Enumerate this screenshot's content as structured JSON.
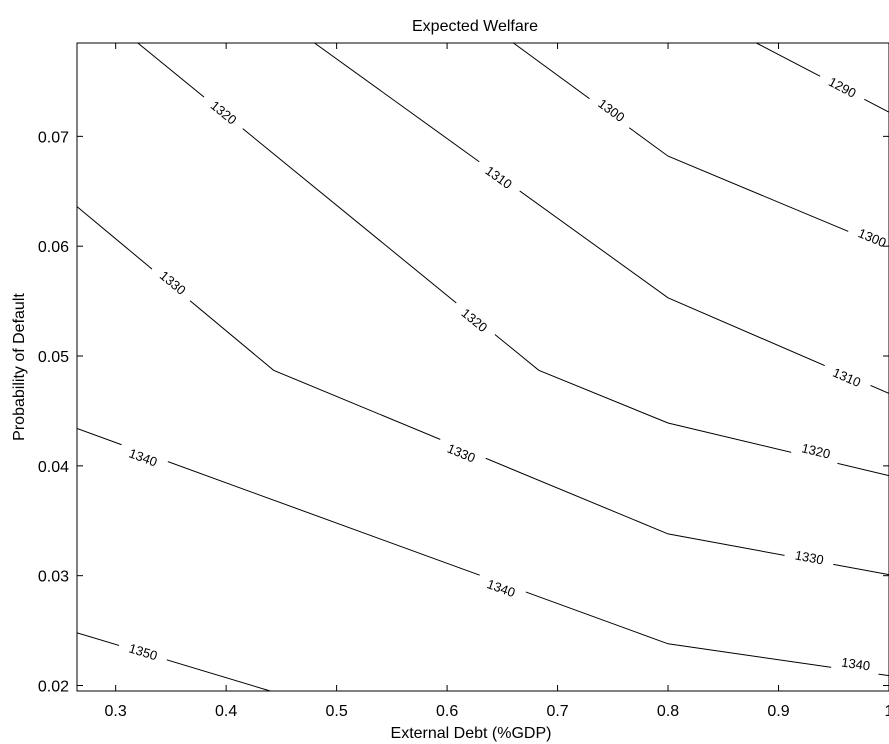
{
  "chart_data": {
    "type": "contour",
    "title": "Expected Welfare",
    "xlabel": "External Debt (%GDP)",
    "ylabel": "Probability of Default",
    "xlim": [
      0.265,
      1.0
    ],
    "ylim": [
      0.0195,
      0.0785
    ],
    "xticks": [
      0.3,
      0.4,
      0.5,
      0.6,
      0.7,
      0.8,
      0.9,
      1.0
    ],
    "xtick_labels": [
      "0.3",
      "0.4",
      "0.5",
      "0.6",
      "0.7",
      "0.8",
      "0.9",
      "1"
    ],
    "yticks": [
      0.02,
      0.03,
      0.04,
      0.05,
      0.06,
      0.07
    ],
    "ytick_labels": [
      "0.02",
      "0.03",
      "0.04",
      "0.05",
      "0.06",
      "0.07"
    ],
    "grid": false,
    "contours": [
      {
        "level": "1290",
        "points": [
          [
            0.88,
            0.0785
          ],
          [
            1.0,
            0.0722
          ]
        ],
        "labels": [
          {
            "text": "1290",
            "x": 0.958,
            "y": 0.0745
          }
        ]
      },
      {
        "level": "1300",
        "points": [
          [
            0.66,
            0.0785
          ],
          [
            0.8,
            0.0682
          ],
          [
            1.0,
            0.0598
          ]
        ],
        "labels": [
          {
            "text": "1300",
            "x": 0.749,
            "y": 0.0724
          },
          {
            "text": "1300",
            "x": 0.985,
            "y": 0.0608
          }
        ]
      },
      {
        "level": "1310",
        "points": [
          [
            0.48,
            0.0785
          ],
          [
            0.8,
            0.0553
          ],
          [
            1.0,
            0.0466
          ]
        ],
        "labels": [
          {
            "text": "1310",
            "x": 0.647,
            "y": 0.0663
          },
          {
            "text": "1310",
            "x": 0.962,
            "y": 0.0481
          }
        ]
      },
      {
        "level": "1320",
        "points": [
          [
            0.32,
            0.0785
          ],
          [
            0.683,
            0.0487
          ],
          [
            0.8,
            0.0439
          ],
          [
            1.0,
            0.0391
          ]
        ],
        "labels": [
          {
            "text": "1320",
            "x": 0.398,
            "y": 0.0722
          },
          {
            "text": "1320",
            "x": 0.625,
            "y": 0.0533
          },
          {
            "text": "1320",
            "x": 0.934,
            "y": 0.0414
          }
        ]
      },
      {
        "level": "1330",
        "points": [
          [
            0.265,
            0.0636
          ],
          [
            0.443,
            0.0487
          ],
          [
            0.8,
            0.0338
          ],
          [
            1.0,
            0.0301
          ]
        ],
        "labels": [
          {
            "text": "1330",
            "x": 0.352,
            "y": 0.0567
          },
          {
            "text": "1330",
            "x": 0.613,
            "y": 0.0412
          },
          {
            "text": "1330",
            "x": 0.928,
            "y": 0.0317
          }
        ]
      },
      {
        "level": "1340",
        "points": [
          [
            0.265,
            0.0434
          ],
          [
            0.8,
            0.0238
          ],
          [
            1.0,
            0.0209
          ]
        ],
        "labels": [
          {
            "text": "1340",
            "x": 0.325,
            "y": 0.0408
          },
          {
            "text": "1340",
            "x": 0.649,
            "y": 0.0289
          },
          {
            "text": "1340",
            "x": 0.97,
            "y": 0.022
          }
        ]
      },
      {
        "level": "1350",
        "points": [
          [
            0.265,
            0.0248
          ],
          [
            0.44,
            0.0195
          ]
        ],
        "labels": [
          {
            "text": "1350",
            "x": 0.325,
            "y": 0.0231
          }
        ]
      }
    ]
  }
}
